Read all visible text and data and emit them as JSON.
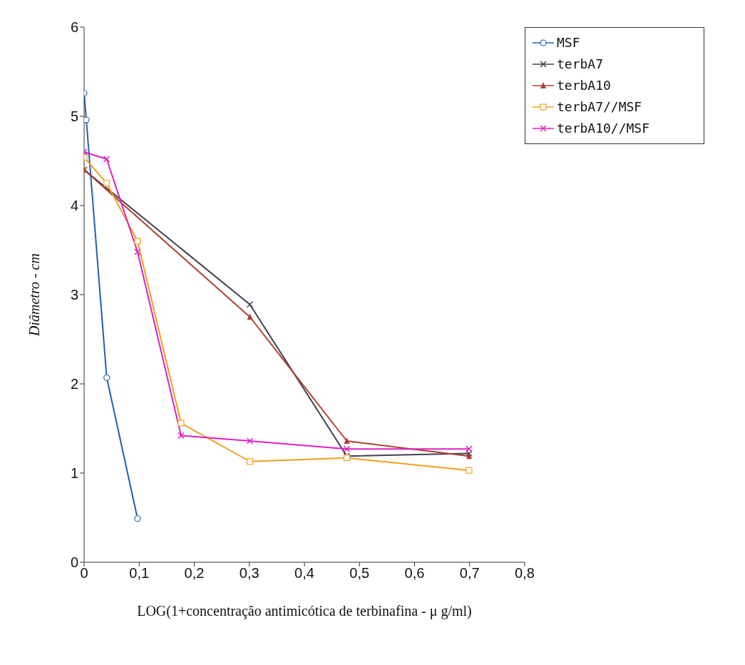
{
  "chart_data": {
    "type": "line",
    "xlabel": "LOG(1+concentração antimicótica de terbinafina -  μ g/ml)",
    "ylabel": "Diâmetro - cm",
    "xlim": [
      0,
      0.8
    ],
    "xticks": [
      0,
      {
        "value": 0.1,
        "label": "0,1"
      },
      {
        "value": 0.2,
        "label": "0,2"
      },
      {
        "value": 0.3,
        "label": "0,3"
      },
      {
        "value": 0.4,
        "label": "0,4"
      },
      {
        "value": 0.5,
        "label": "0,5"
      },
      {
        "value": 0.6,
        "label": "0,6"
      },
      {
        "value": 0.7,
        "label": "0,7"
      },
      {
        "value": 0.8,
        "label": "0,8"
      }
    ],
    "ylim": [
      0,
      6
    ],
    "yticks": [
      0,
      1,
      2,
      3,
      4,
      5,
      6
    ],
    "grid": false,
    "legend": "top right",
    "line_style": "solid",
    "series": [
      {
        "name": "MSF",
        "color": "#2060b0",
        "marker": "circle",
        "x": [
          0,
          0.004,
          0.041,
          0.097
        ],
        "values": [
          5.26,
          4.96,
          2.07,
          0.49
        ]
      },
      {
        "name": "terbA7",
        "color": "#404050",
        "marker": "cross",
        "x": [
          0,
          0.301,
          0.477,
          0.699
        ],
        "values": [
          4.4,
          2.89,
          1.19,
          1.22
        ]
      },
      {
        "name": "terbA10",
        "color": "#b04030",
        "marker": "triangle",
        "x": [
          0,
          0.301,
          0.477,
          0.699
        ],
        "values": [
          4.4,
          2.75,
          1.36,
          1.19
        ]
      },
      {
        "name": "terbA7//MSF",
        "color": "#f0a020",
        "marker": "square",
        "x": [
          0,
          0.041,
          0.097,
          0.176,
          0.301,
          0.477,
          0.699
        ],
        "values": [
          4.54,
          4.25,
          3.6,
          1.56,
          1.13,
          1.17,
          1.03
        ]
      },
      {
        "name": "terbA10//MSF",
        "color": "#e020c0",
        "marker": "cross",
        "x": [
          0,
          0.041,
          0.097,
          0.176,
          0.301,
          0.477,
          0.699
        ],
        "values": [
          4.6,
          4.52,
          3.48,
          1.42,
          1.36,
          1.27,
          1.27
        ]
      }
    ]
  }
}
